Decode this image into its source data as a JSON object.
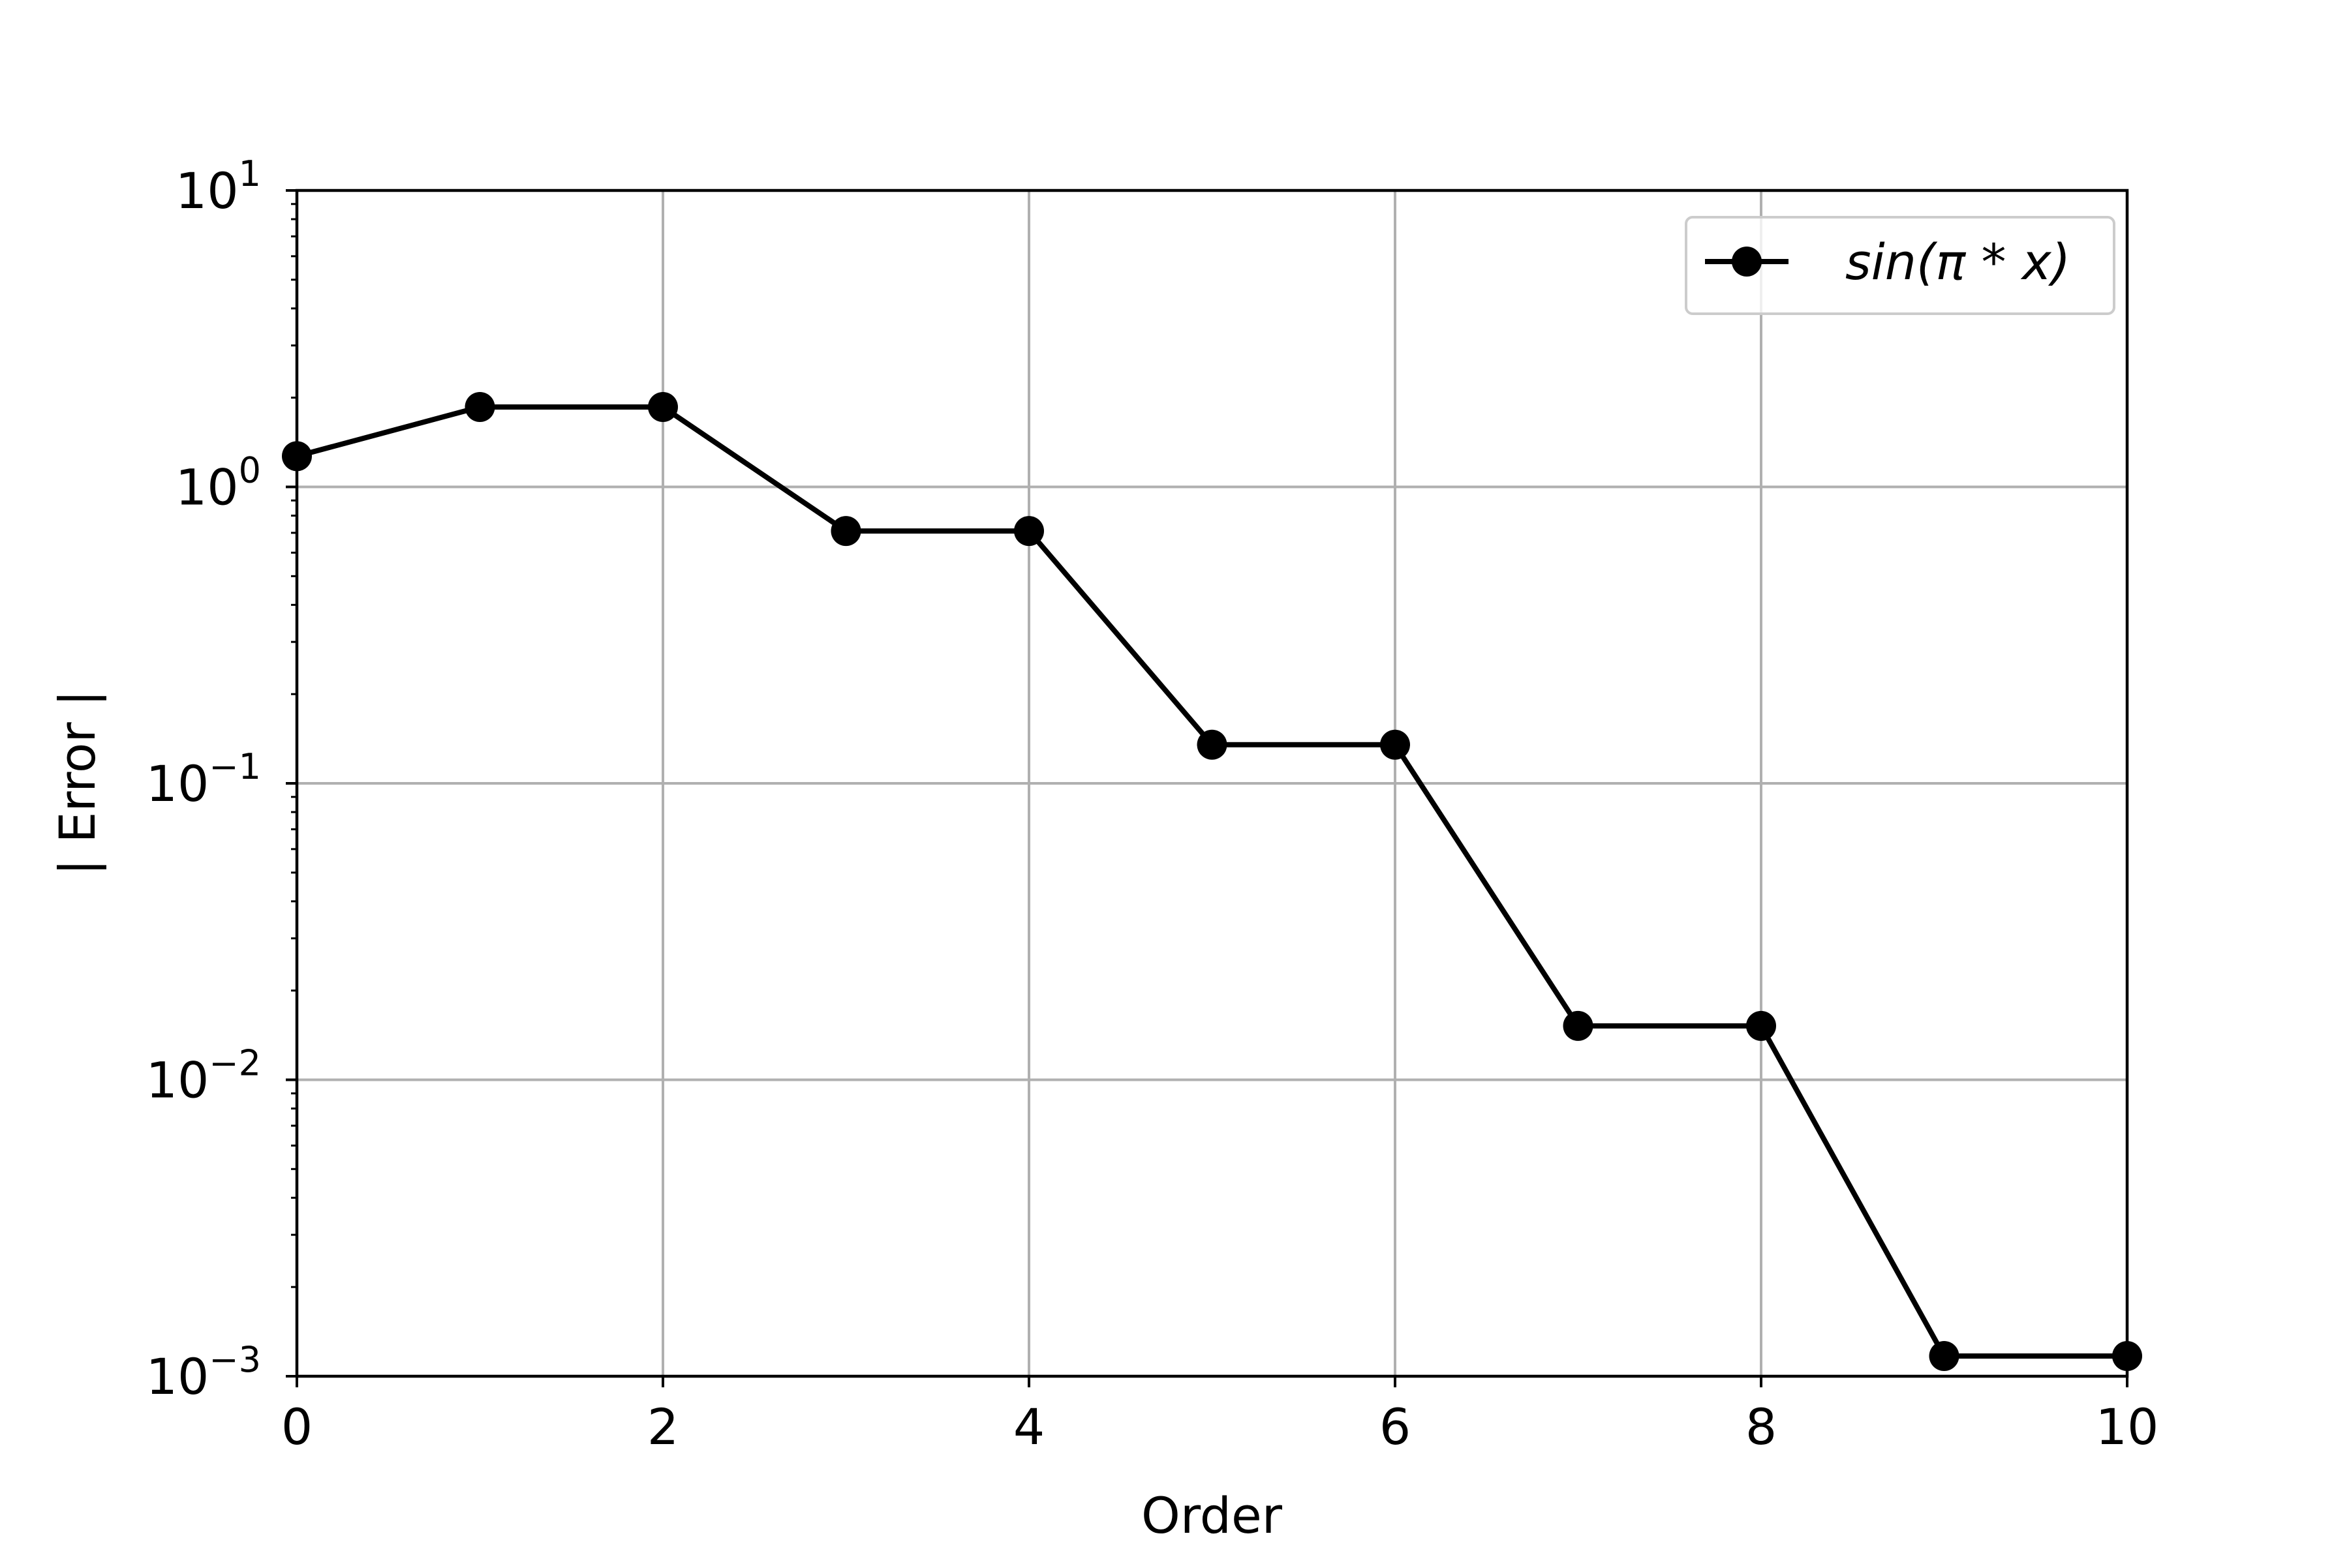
{
  "chart_data": {
    "type": "line",
    "xlabel": "Order",
    "ylabel": "| Error |",
    "xlim": [
      0,
      10
    ],
    "ylim": [
      0.001,
      10
    ],
    "yscale": "log",
    "grid": true,
    "legend_position": "top-right",
    "x_ticks": [
      "0",
      "2",
      "4",
      "6",
      "8",
      "10"
    ],
    "x_tick_values": [
      0,
      2,
      4,
      6,
      8,
      10
    ],
    "y_ticks": [
      {
        "value": 10,
        "base": "10",
        "exp": "1"
      },
      {
        "value": 1,
        "base": "10",
        "exp": "0"
      },
      {
        "value": 0.1,
        "base": "10",
        "exp": "−1"
      },
      {
        "value": 0.01,
        "base": "10",
        "exp": "−2"
      },
      {
        "value": 0.001,
        "base": "10",
        "exp": "−3"
      }
    ],
    "series": [
      {
        "name": "sin(π * x)",
        "color": "#000000",
        "marker": "circle",
        "x": [
          0,
          1,
          2,
          3,
          4,
          5,
          6,
          7,
          8,
          9,
          10
        ],
        "y": [
          1.27,
          1.86,
          1.86,
          0.71,
          0.71,
          0.135,
          0.135,
          0.0152,
          0.0152,
          0.00117,
          0.00117
        ]
      }
    ]
  },
  "colors": {
    "line": "#000000",
    "grid": "#b0b0b0",
    "axes": "#000000",
    "legend_border": "#cccccc"
  }
}
